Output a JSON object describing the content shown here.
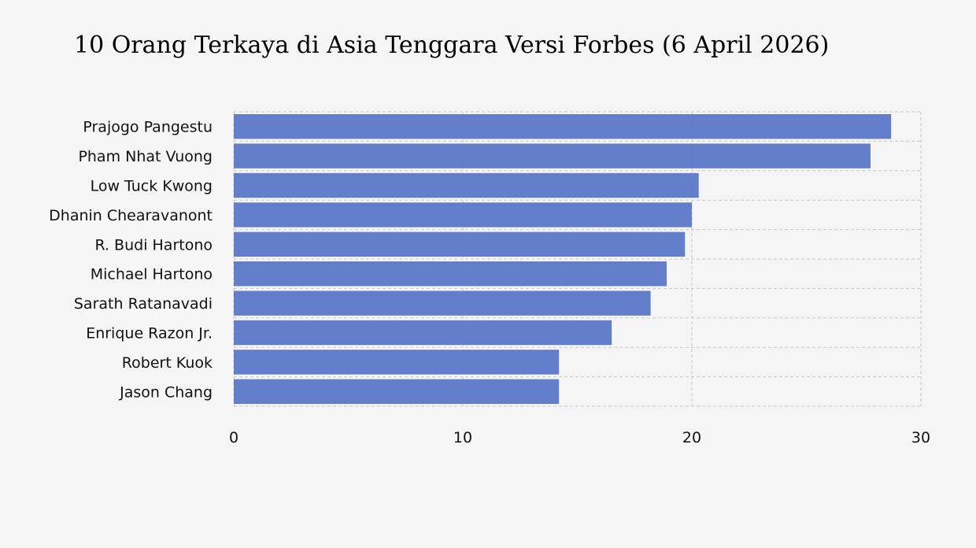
{
  "chart_data": {
    "type": "bar",
    "orientation": "horizontal",
    "title": "10 Orang Terkaya di Asia Tenggara Versi Forbes (6 April 2026)",
    "xlabel": "",
    "ylabel": "",
    "categories": [
      "Prajogo Pangestu",
      "Pham Nhat Vuong",
      "Low Tuck Kwong",
      "Dhanin Chearavanont",
      "R. Budi Hartono",
      "Michael Hartono",
      "Sarath Ratanavadi",
      "Enrique Razon Jr.",
      "Robert Kuok",
      "Jason Chang"
    ],
    "values": [
      28.7,
      27.8,
      20.3,
      20.0,
      19.7,
      18.9,
      18.2,
      16.5,
      14.2,
      14.2
    ],
    "xlim": [
      0,
      30
    ],
    "xticks": [
      0,
      10,
      20,
      30
    ],
    "grid": true,
    "bar_color": "#5b77c8",
    "background_color": "#f5f5f5",
    "grid_color": "#c8c8c8"
  }
}
